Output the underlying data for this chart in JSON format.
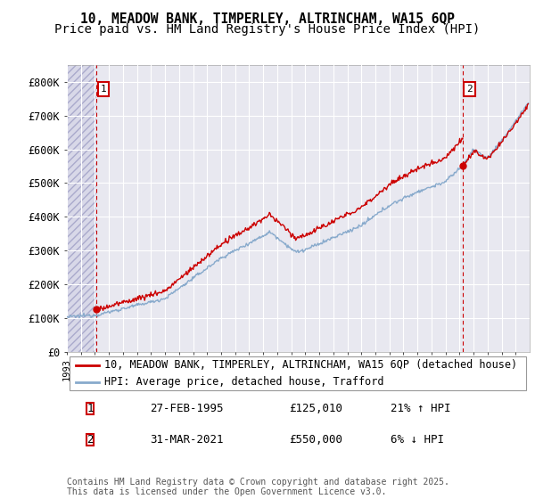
{
  "title_line1": "10, MEADOW BANK, TIMPERLEY, ALTRINCHAM, WA15 6QP",
  "title_line2": "Price paid vs. HM Land Registry's House Price Index (HPI)",
  "ylim": [
    0,
    850000
  ],
  "yticks": [
    0,
    100000,
    200000,
    300000,
    400000,
    500000,
    600000,
    700000,
    800000
  ],
  "ytick_labels": [
    "£0",
    "£100K",
    "£200K",
    "£300K",
    "£400K",
    "£500K",
    "£600K",
    "£700K",
    "£800K"
  ],
  "background_color": "#ffffff",
  "plot_bg_color": "#e8e8f0",
  "grid_color": "#ffffff",
  "legend_entries": [
    "10, MEADOW BANK, TIMPERLEY, ALTRINCHAM, WA15 6QP (detached house)",
    "HPI: Average price, detached house, Trafford"
  ],
  "legend_colors": [
    "#cc0000",
    "#88aacc"
  ],
  "sale1_year": 1995.125,
  "sale1_price": 125010,
  "sale2_year": 2021.25,
  "sale2_price": 550000,
  "sale1_date": "27-FEB-1995",
  "sale2_date": "31-MAR-2021",
  "sale1_hpi_rel": "21% ↑ HPI",
  "sale2_hpi_rel": "6% ↓ HPI",
  "footnote": "Contains HM Land Registry data © Crown copyright and database right 2025.\nThis data is licensed under the Open Government Licence v3.0.",
  "title_fontsize": 10.5,
  "axis_fontsize": 8.5,
  "legend_fontsize": 8.5,
  "footnote_fontsize": 7.0,
  "x_min": 1993,
  "x_max": 2026
}
